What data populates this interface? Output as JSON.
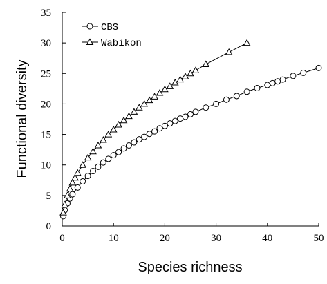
{
  "chart_data": {
    "type": "line",
    "xlabel": "Species richness",
    "ylabel": "Functional diversity",
    "xlim": [
      0,
      50
    ],
    "xticks": [
      0,
      10,
      20,
      30,
      40,
      50
    ],
    "ylim": [
      0,
      35
    ],
    "yticks": [
      0,
      5,
      10,
      15,
      20,
      25,
      30,
      35
    ],
    "series": [
      {
        "name": "CBS",
        "color": "#000000",
        "marker": "circle",
        "x": [
          0.2,
          0.5,
          1,
          1.5,
          2,
          3,
          4,
          5,
          6,
          7,
          8,
          9,
          10,
          11,
          12,
          13,
          14,
          15,
          16,
          17,
          18,
          19,
          20,
          21,
          22,
          23,
          24,
          25,
          26,
          28,
          30,
          32,
          34,
          36,
          38,
          40,
          41,
          42,
          43,
          45,
          47,
          50
        ],
        "values": [
          1.6,
          2.6,
          3.7,
          4.5,
          5.2,
          6.3,
          7.3,
          8.2,
          9.0,
          9.7,
          10.4,
          11.0,
          11.6,
          12.1,
          12.7,
          13.2,
          13.7,
          14.2,
          14.6,
          15.1,
          15.5,
          16.0,
          16.4,
          16.8,
          17.2,
          17.6,
          17.9,
          18.3,
          18.7,
          19.4,
          20.0,
          20.7,
          21.3,
          22.0,
          22.6,
          23.1,
          23.4,
          23.7,
          24.0,
          24.6,
          25.1,
          25.9
        ]
      },
      {
        "name": "Wabikon",
        "color": "#000000",
        "marker": "triangle",
        "x": [
          0.2,
          0.5,
          1,
          1.5,
          2,
          2.5,
          3,
          4,
          5,
          6,
          7,
          8,
          9,
          10,
          11,
          12,
          13,
          14,
          15,
          16,
          17,
          18,
          19,
          20,
          21,
          22,
          23,
          24,
          25,
          26,
          28,
          32.5,
          36
        ],
        "values": [
          2.2,
          3.5,
          5.0,
          6.1,
          7.1,
          7.9,
          8.7,
          10.0,
          11.2,
          12.2,
          13.2,
          14.1,
          15.0,
          15.8,
          16.6,
          17.3,
          18.0,
          18.7,
          19.4,
          20.0,
          20.6,
          21.2,
          21.8,
          22.4,
          22.9,
          23.5,
          24.0,
          24.5,
          25.0,
          25.5,
          26.5,
          28.5,
          30.0
        ]
      }
    ]
  }
}
